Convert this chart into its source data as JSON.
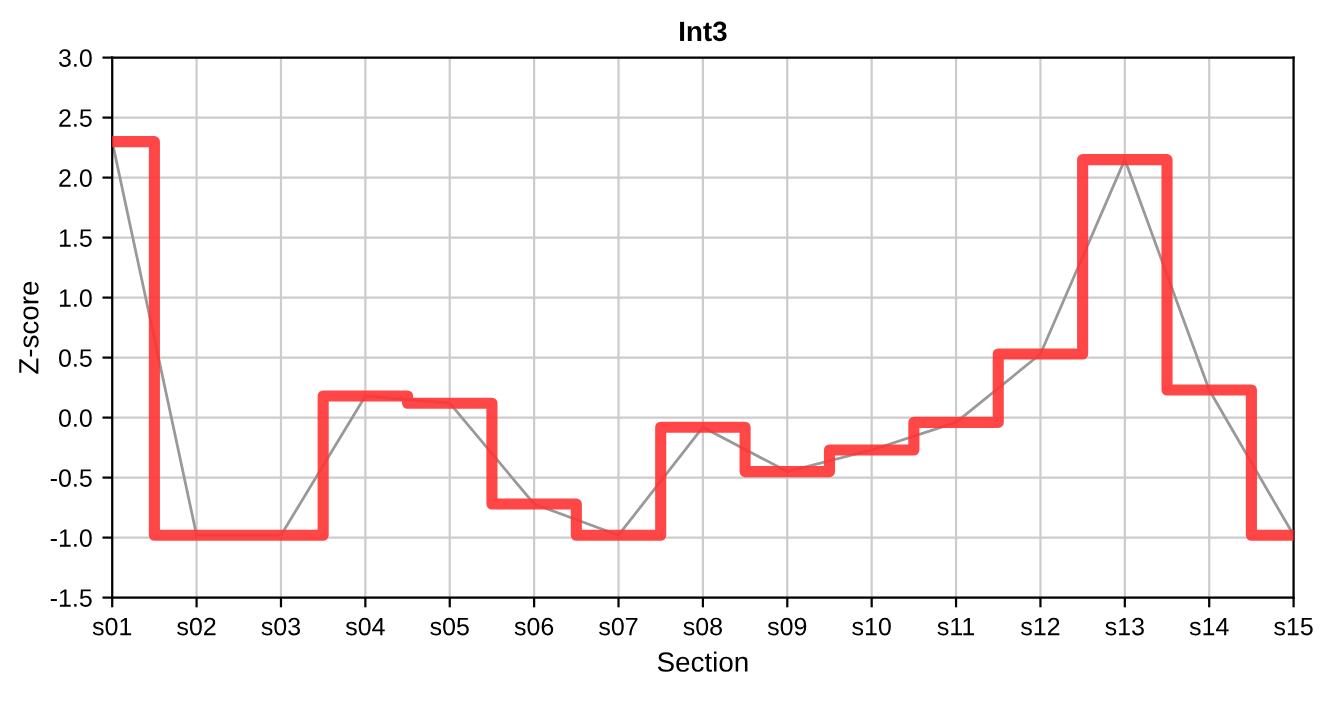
{
  "chart_data": {
    "type": "step",
    "title": "Int3",
    "xlabel": "Section",
    "ylabel": "Z-score",
    "categories": [
      "s01",
      "s02",
      "s03",
      "s04",
      "s05",
      "s06",
      "s07",
      "s08",
      "s09",
      "s10",
      "s11",
      "s12",
      "s13",
      "s14",
      "s15"
    ],
    "series": [
      {
        "color": "#ff3333",
        "values": [
          2.3,
          -0.98,
          -0.98,
          0.18,
          0.12,
          -0.72,
          -0.98,
          -0.08,
          -0.45,
          -0.27,
          -0.04,
          0.53,
          2.15,
          0.23,
          -0.98
        ]
      },
      {
        "type": "line",
        "color": "#999999",
        "values": [
          2.3,
          -0.98,
          -0.98,
          0.18,
          0.12,
          -0.72,
          -0.98,
          -0.08,
          -0.45,
          -0.27,
          -0.04,
          0.53,
          2.15,
          0.23,
          -0.98
        ]
      }
    ],
    "ylim": [
      -1.5,
      3.0
    ],
    "yticks": [
      {
        "value": -1.5,
        "label": "-1.5"
      },
      {
        "value": -1.0,
        "label": "-1.0"
      },
      -0.5,
      {
        "value": 0.0,
        "label": "0.0"
      },
      0.5,
      {
        "value": 1.0,
        "label": "1.0"
      },
      1.5,
      {
        "value": 2.0,
        "label": "2.0"
      },
      2.5,
      {
        "value": 3.0,
        "label": "3.0"
      }
    ],
    "grid": true,
    "legend": false
  }
}
